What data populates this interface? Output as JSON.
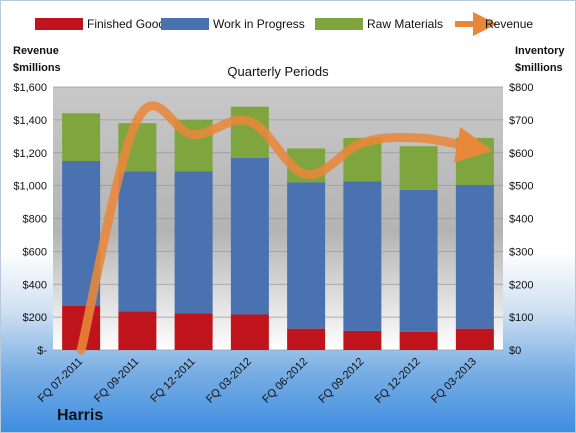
{
  "chart_data": {
    "type": "bar",
    "stacked": true,
    "title": "Quarterly Periods",
    "company": "Harris",
    "categories": [
      "FQ 07-2011",
      "FQ 09-2011",
      "FQ 12-2011",
      "FQ 03-2012",
      "FQ 06-2012",
      "FQ 09-2012",
      "FQ 12-2012",
      "FQ 03-2013"
    ],
    "series": [
      {
        "name": "Finished Goods",
        "axis": "right",
        "color": "#c0141c",
        "values": [
          135,
          118,
          112,
          108,
          65,
          58,
          55,
          65
        ]
      },
      {
        "name": "Work in Progress",
        "axis": "right",
        "color": "#4a72b0",
        "values": [
          440,
          425,
          432,
          477,
          445,
          455,
          432,
          437
        ]
      },
      {
        "name": "Raw Materials",
        "axis": "right",
        "color": "#7fa53f",
        "values": [
          145,
          147,
          156,
          155,
          103,
          132,
          133,
          143
        ]
      },
      {
        "name": "Revenue",
        "type": "line",
        "axis": "left",
        "color": "#e8873a",
        "values": [
          0,
          1400,
          1310,
          1390,
          1070,
          1260,
          1290,
          1230
        ]
      }
    ],
    "y_left": {
      "label_lines": [
        "Revenue",
        "$millions"
      ],
      "ticks": [
        "$1,600",
        "$1,400",
        "$1,200",
        "$1,000",
        "$800",
        "$600",
        "$400",
        "$200",
        "$-"
      ],
      "range": [
        0,
        1600
      ]
    },
    "y_right": {
      "label_lines": [
        "Inventory",
        "$millions"
      ],
      "ticks": [
        "$800",
        "$700",
        "$600",
        "$500",
        "$400",
        "$300",
        "$200",
        "$100",
        "$0"
      ],
      "range": [
        0,
        800
      ]
    },
    "legend_position": "top"
  }
}
